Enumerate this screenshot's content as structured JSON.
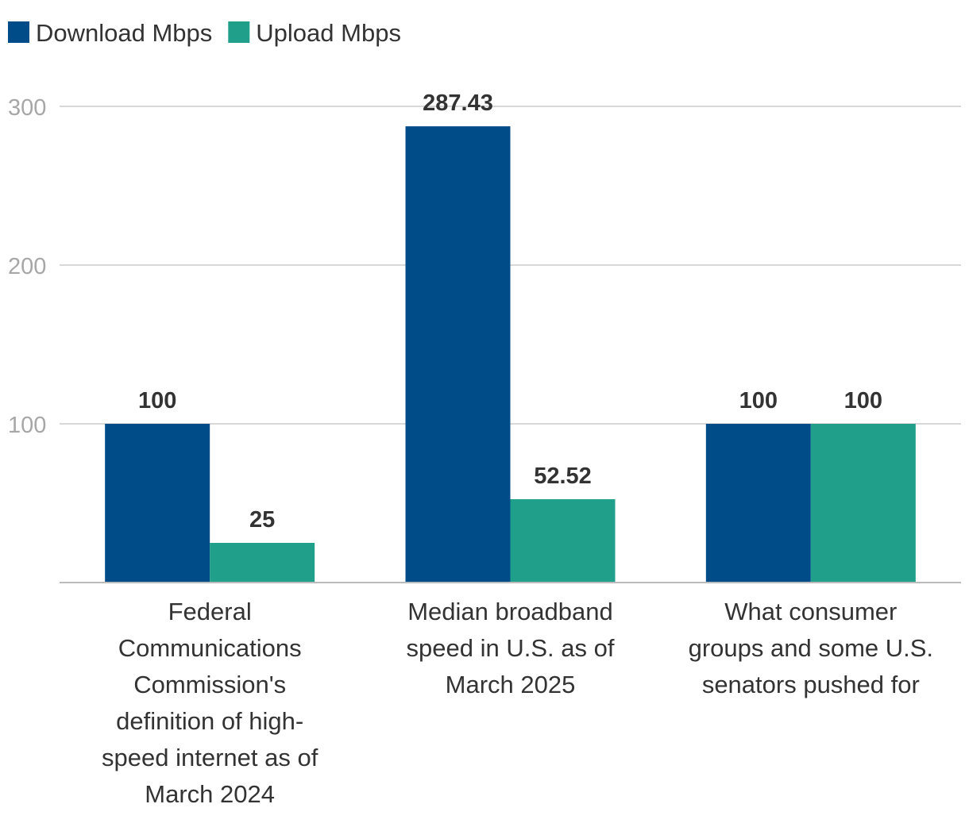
{
  "chart_data": {
    "type": "bar",
    "title": "",
    "xlabel": "",
    "ylabel": "",
    "categories": [
      "Federal Communications Commission's definition of high-speed internet as of March 2024",
      "Median broadband speed in U.S. as of March 2025",
      "What consumer groups and some U.S. senators pushed for"
    ],
    "category_lines": [
      [
        "Federal",
        "Communications",
        "Commission's",
        "definition of high-",
        "speed internet as of",
        "March 2024"
      ],
      [
        "Median broadband",
        "speed in U.S. as of",
        "March 2025"
      ],
      [
        "What consumer",
        "groups and some U.S.",
        "senators pushed for"
      ]
    ],
    "series": [
      {
        "name": "Download Mbps",
        "color": "#004c89",
        "values": [
          100,
          287.43,
          100
        ],
        "labels": [
          "100",
          "287.43",
          "100"
        ]
      },
      {
        "name": "Upload Mbps",
        "color": "#20a08b",
        "values": [
          25,
          52.52,
          100
        ],
        "labels": [
          "25",
          "52.52",
          "100"
        ]
      }
    ],
    "ylim": [
      0,
      300
    ],
    "yticks": [
      100,
      200,
      300
    ],
    "ytick_labels": [
      "100",
      "200",
      "300"
    ],
    "grid": true,
    "legend_position": "top-left"
  }
}
